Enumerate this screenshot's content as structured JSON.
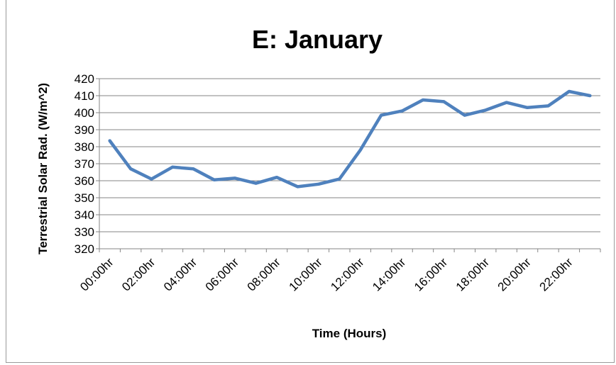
{
  "chart_data": {
    "type": "line",
    "title": "E: January",
    "xlabel": "Time (Hours)",
    "ylabel": "Terrestrial Solar Rad. (W/m^2)",
    "ylim": [
      320,
      420
    ],
    "yticks": [
      320,
      330,
      340,
      350,
      360,
      370,
      380,
      390,
      400,
      410,
      420
    ],
    "grid": true,
    "legend": "none",
    "line_color": "#4f81bd",
    "x": [
      "00:00hr",
      "01:00hr",
      "02:00hr",
      "03:00hr",
      "04:00hr",
      "05:00hr",
      "06:00hr",
      "07:00hr",
      "08:00hr",
      "09:00hr",
      "10:00hr",
      "11:00hr",
      "12:00hr",
      "13:00hr",
      "14:00hr",
      "15:00hr",
      "16:00hr",
      "17:00hr",
      "18:00hr",
      "19:00hr",
      "20:00hr",
      "21:00hr",
      "22:00hr",
      "23:00hr"
    ],
    "x_tick_labels": [
      "00:00hr",
      "02:00hr",
      "04:00hr",
      "06:00hr",
      "08:00hr",
      "10:00hr",
      "12:00hr",
      "14:00hr",
      "16:00hr",
      "18:00hr",
      "20:00hr",
      "22:00hr"
    ],
    "series": [
      {
        "values": [
          383.5,
          367,
          361,
          368,
          367,
          360.5,
          361.5,
          358.5,
          362,
          356.5,
          358,
          361,
          378,
          398.5,
          401,
          407.5,
          406.5,
          398.5,
          401.5,
          406,
          403,
          404,
          412.5,
          410
        ]
      }
    ]
  }
}
